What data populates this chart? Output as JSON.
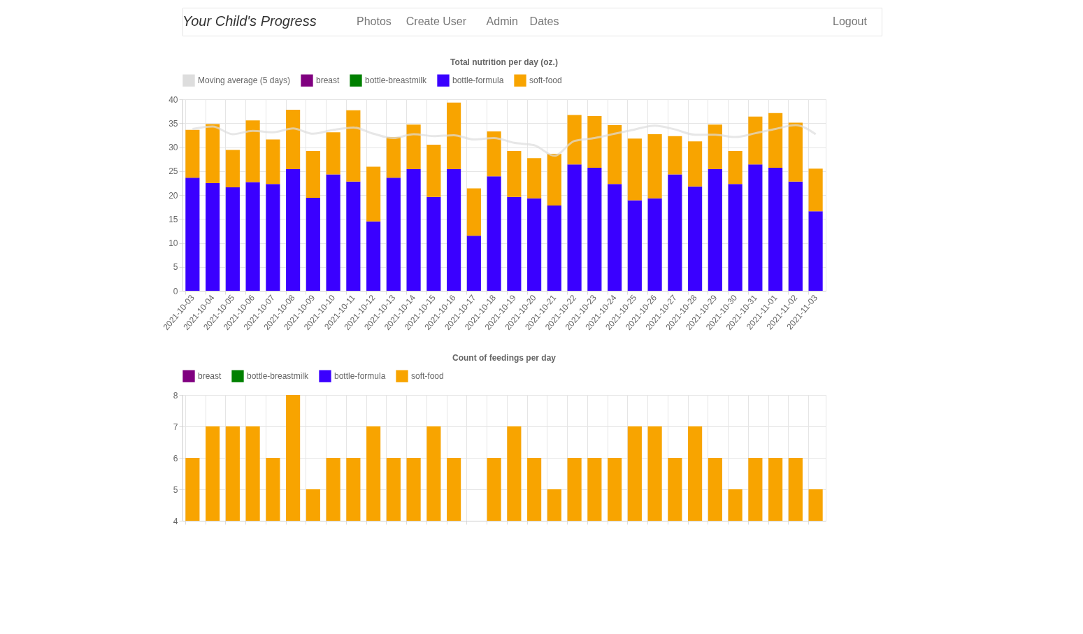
{
  "chart_data": [
    {
      "type": "bar",
      "title": "Total nutrition per day (oz.)",
      "annotations": [
        "Your Child's Progress",
        "Photos",
        "Create User",
        "Admin",
        "Dates",
        "Logout"
      ],
      "categories": [
        "2021-10-03",
        "2021-10-04",
        "2021-10-05",
        "2021-10-06",
        "2021-10-07",
        "2021-10-08",
        "2021-10-09",
        "2021-10-10",
        "2021-10-11",
        "2021-10-12",
        "2021-10-13",
        "2021-10-14",
        "2021-10-15",
        "2021-10-16",
        "2021-10-17",
        "2021-10-18",
        "2021-10-19",
        "2021-10-20",
        "2021-10-21",
        "2021-10-22",
        "2021-10-23",
        "2021-10-24",
        "2021-10-25",
        "2021-10-26",
        "2021-10-27",
        "2021-10-28",
        "2021-10-29",
        "2021-10-30",
        "2021-10-31",
        "2021-11-01",
        "2021-11-02",
        "2021-11-03"
      ],
      "stacked": true,
      "ylim": [
        0,
        40
      ],
      "yticks": [
        0,
        5,
        10,
        15,
        20,
        25,
        30,
        35,
        40
      ],
      "grid": true,
      "legend": "top",
      "series": [
        {
          "name": "Moving average (5 days)",
          "type": "line",
          "color": "#dddddd",
          "values": [
            33.8,
            34.3,
            32.7,
            33.4,
            33.1,
            33.9,
            32.8,
            33.6,
            34.1,
            32.8,
            31.9,
            32.7,
            32.3,
            32.5,
            31.6,
            31.9,
            30.9,
            30.4,
            28.2,
            31.3,
            31.9,
            32.8,
            33.7,
            34.5,
            33.7,
            32.6,
            32.6,
            32.1,
            32.9,
            33.8,
            34.6,
            32.7
          ]
        },
        {
          "name": "breast",
          "color": "#800080",
          "values": [
            null,
            null,
            null,
            null,
            null,
            null,
            null,
            null,
            null,
            null,
            null,
            null,
            null,
            null,
            null,
            null,
            null,
            null,
            null,
            null,
            null,
            null,
            null,
            null,
            null,
            null,
            null,
            null,
            null,
            null,
            null,
            null
          ]
        },
        {
          "name": "bottle-breastmilk",
          "color": "#008000",
          "values": [
            null,
            null,
            null,
            null,
            null,
            null,
            null,
            null,
            null,
            null,
            null,
            null,
            null,
            null,
            null,
            null,
            null,
            null,
            null,
            null,
            null,
            null,
            null,
            null,
            null,
            null,
            null,
            null,
            null,
            null,
            null,
            null
          ]
        },
        {
          "name": "bottle-formula",
          "color": "#3a00ff",
          "values": [
            23.6,
            22.5,
            21.6,
            22.7,
            22.3,
            25.4,
            19.4,
            24.3,
            22.8,
            14.5,
            23.6,
            25.4,
            19.6,
            25.4,
            11.5,
            23.9,
            19.6,
            19.3,
            17.8,
            26.4,
            25.7,
            22.3,
            18.9,
            19.3,
            24.3,
            21.8,
            25.4,
            22.3,
            26.4,
            25.7,
            22.8,
            16.6
          ]
        },
        {
          "name": "soft-food",
          "color": "#f8a400",
          "values": [
            10.0,
            12.3,
            7.8,
            12.9,
            9.3,
            12.4,
            9.8,
            8.8,
            14.9,
            11.4,
            8.5,
            9.3,
            10.9,
            13.9,
            9.9,
            9.4,
            9.6,
            8.4,
            10.8,
            10.3,
            10.8,
            12.3,
            12.9,
            13.4,
            8.0,
            9.4,
            9.3,
            6.9,
            10.0,
            11.4,
            12.3,
            8.9
          ]
        }
      ]
    },
    {
      "type": "bar",
      "title": "Count of feedings per day",
      "categories": [
        "2021-10-03",
        "2021-10-04",
        "2021-10-05",
        "2021-10-06",
        "2021-10-07",
        "2021-10-08",
        "2021-10-09",
        "2021-10-10",
        "2021-10-11",
        "2021-10-12",
        "2021-10-13",
        "2021-10-14",
        "2021-10-15",
        "2021-10-16",
        "2021-10-17",
        "2021-10-18",
        "2021-10-19",
        "2021-10-20",
        "2021-10-21",
        "2021-10-22",
        "2021-10-23",
        "2021-10-24",
        "2021-10-25",
        "2021-10-26",
        "2021-10-27",
        "2021-10-28",
        "2021-10-29",
        "2021-10-30",
        "2021-10-31",
        "2021-11-01",
        "2021-11-02",
        "2021-11-03"
      ],
      "ylim": [
        4,
        8
      ],
      "yticks": [
        4,
        5,
        6,
        7,
        8
      ],
      "grid": true,
      "legend": "top",
      "tick_labels": "y",
      "series": [
        {
          "name": "breast",
          "color": "#800080",
          "values": [
            null,
            null,
            null,
            null,
            null,
            null,
            null,
            null,
            null,
            null,
            null,
            null,
            null,
            null,
            null,
            null,
            null,
            null,
            null,
            null,
            null,
            null,
            null,
            null,
            null,
            null,
            null,
            null,
            null,
            null,
            null,
            null
          ]
        },
        {
          "name": "bottle-breastmilk",
          "color": "#008000",
          "values": [
            null,
            null,
            null,
            null,
            null,
            null,
            null,
            null,
            null,
            null,
            null,
            null,
            null,
            null,
            null,
            null,
            null,
            null,
            null,
            null,
            null,
            null,
            null,
            null,
            null,
            null,
            null,
            null,
            null,
            null,
            null,
            null
          ]
        },
        {
          "name": "bottle-formula",
          "color": "#3a00ff",
          "values": [
            null,
            null,
            null,
            null,
            null,
            null,
            null,
            null,
            null,
            null,
            null,
            null,
            null,
            null,
            null,
            null,
            null,
            null,
            null,
            null,
            null,
            null,
            null,
            null,
            null,
            null,
            null,
            null,
            null,
            null,
            null,
            null
          ]
        },
        {
          "name": "soft-food",
          "color": "#f8a400",
          "values": [
            6,
            7,
            7,
            7,
            6,
            8,
            5,
            6,
            6,
            7,
            6,
            6,
            7,
            6,
            4,
            6,
            7,
            6,
            5,
            6,
            6,
            6,
            7,
            7,
            6,
            7,
            6,
            5,
            6,
            6,
            6,
            5
          ]
        }
      ]
    }
  ]
}
